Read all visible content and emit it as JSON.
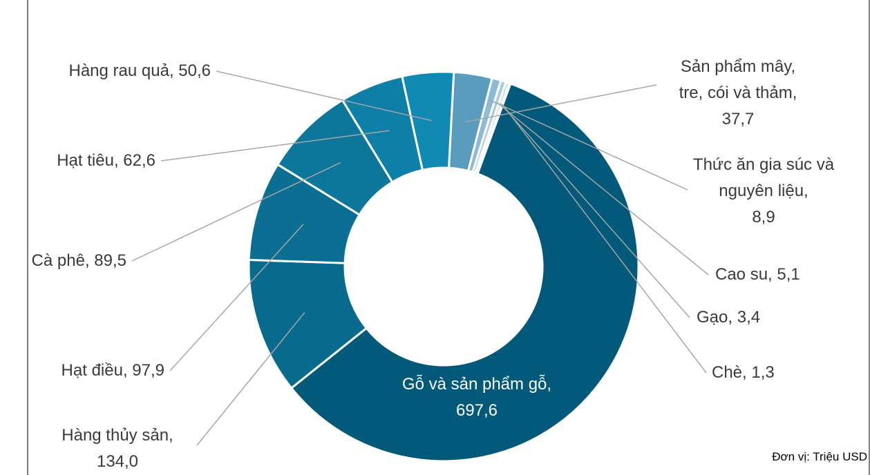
{
  "chart_data": {
    "type": "donut",
    "categories": [
      "Sản phẩm mây, tre, cói và thảm",
      "Thức ăn gia súc và nguyên liệu",
      "Cao su",
      "Gạo",
      "Chè",
      "Gỗ và sản phẩm gỗ",
      "Hàng thủy sản",
      "Hạt điều",
      "Cà phê",
      "Hạt tiêu",
      "Hàng rau quả"
    ],
    "values": [
      37.7,
      8.9,
      5.1,
      3.4,
      1.3,
      697.6,
      134.0,
      97.9,
      89.5,
      62.6,
      50.6
    ],
    "value_labels": [
      "37,7",
      "8,9",
      "5,1",
      "3,4",
      "1,3",
      "697,6",
      "134,0",
      "97,9",
      "89,5",
      "62,6",
      "50,6"
    ],
    "separator": ",",
    "colors": [
      "#5b9bbd",
      "#8dbad4",
      "#a9cbe0",
      "#c3dbea",
      "#dbe9f2",
      "#02597a",
      "#086a8d",
      "#0a6f93",
      "#0c769b",
      "#0e7fa6",
      "#1089b4"
    ],
    "note": "Đơn vị: Triệu USD"
  }
}
